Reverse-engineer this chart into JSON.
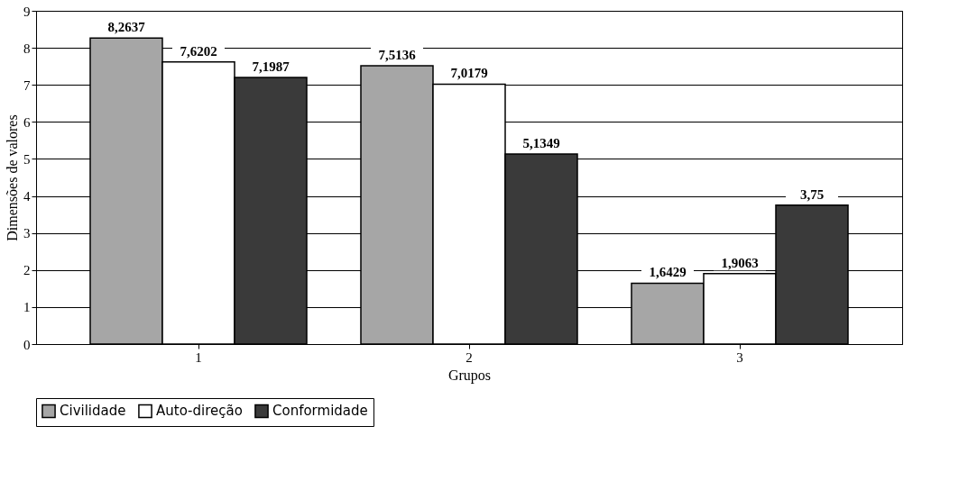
{
  "chart_data": {
    "type": "bar",
    "xlabel": "Grupos",
    "ylabel": "Dimensões de valores",
    "categories": [
      "1",
      "2",
      "3"
    ],
    "series": [
      {
        "name": "Civilidade",
        "color": "#a6a6a6",
        "values": [
          8.2637,
          7.5136,
          1.6429
        ],
        "value_labels": [
          "8,2637",
          "7,5136",
          "1,6429"
        ]
      },
      {
        "name": "Auto-direção",
        "color": "#ffffff",
        "values": [
          7.6202,
          7.0179,
          1.9063
        ],
        "value_labels": [
          "7,6202",
          "7,0179",
          "1,9063"
        ]
      },
      {
        "name": "Conformidade",
        "color": "#3a3a3a",
        "values": [
          7.1987,
          5.1349,
          3.75
        ],
        "value_labels": [
          "7,1987",
          "5,1349",
          "3,75"
        ]
      }
    ],
    "ylim": [
      0,
      9
    ],
    "yticks": [
      0,
      1,
      2,
      3,
      4,
      5,
      6,
      7,
      8,
      9
    ],
    "grid": "y",
    "legend": "bottom"
  }
}
